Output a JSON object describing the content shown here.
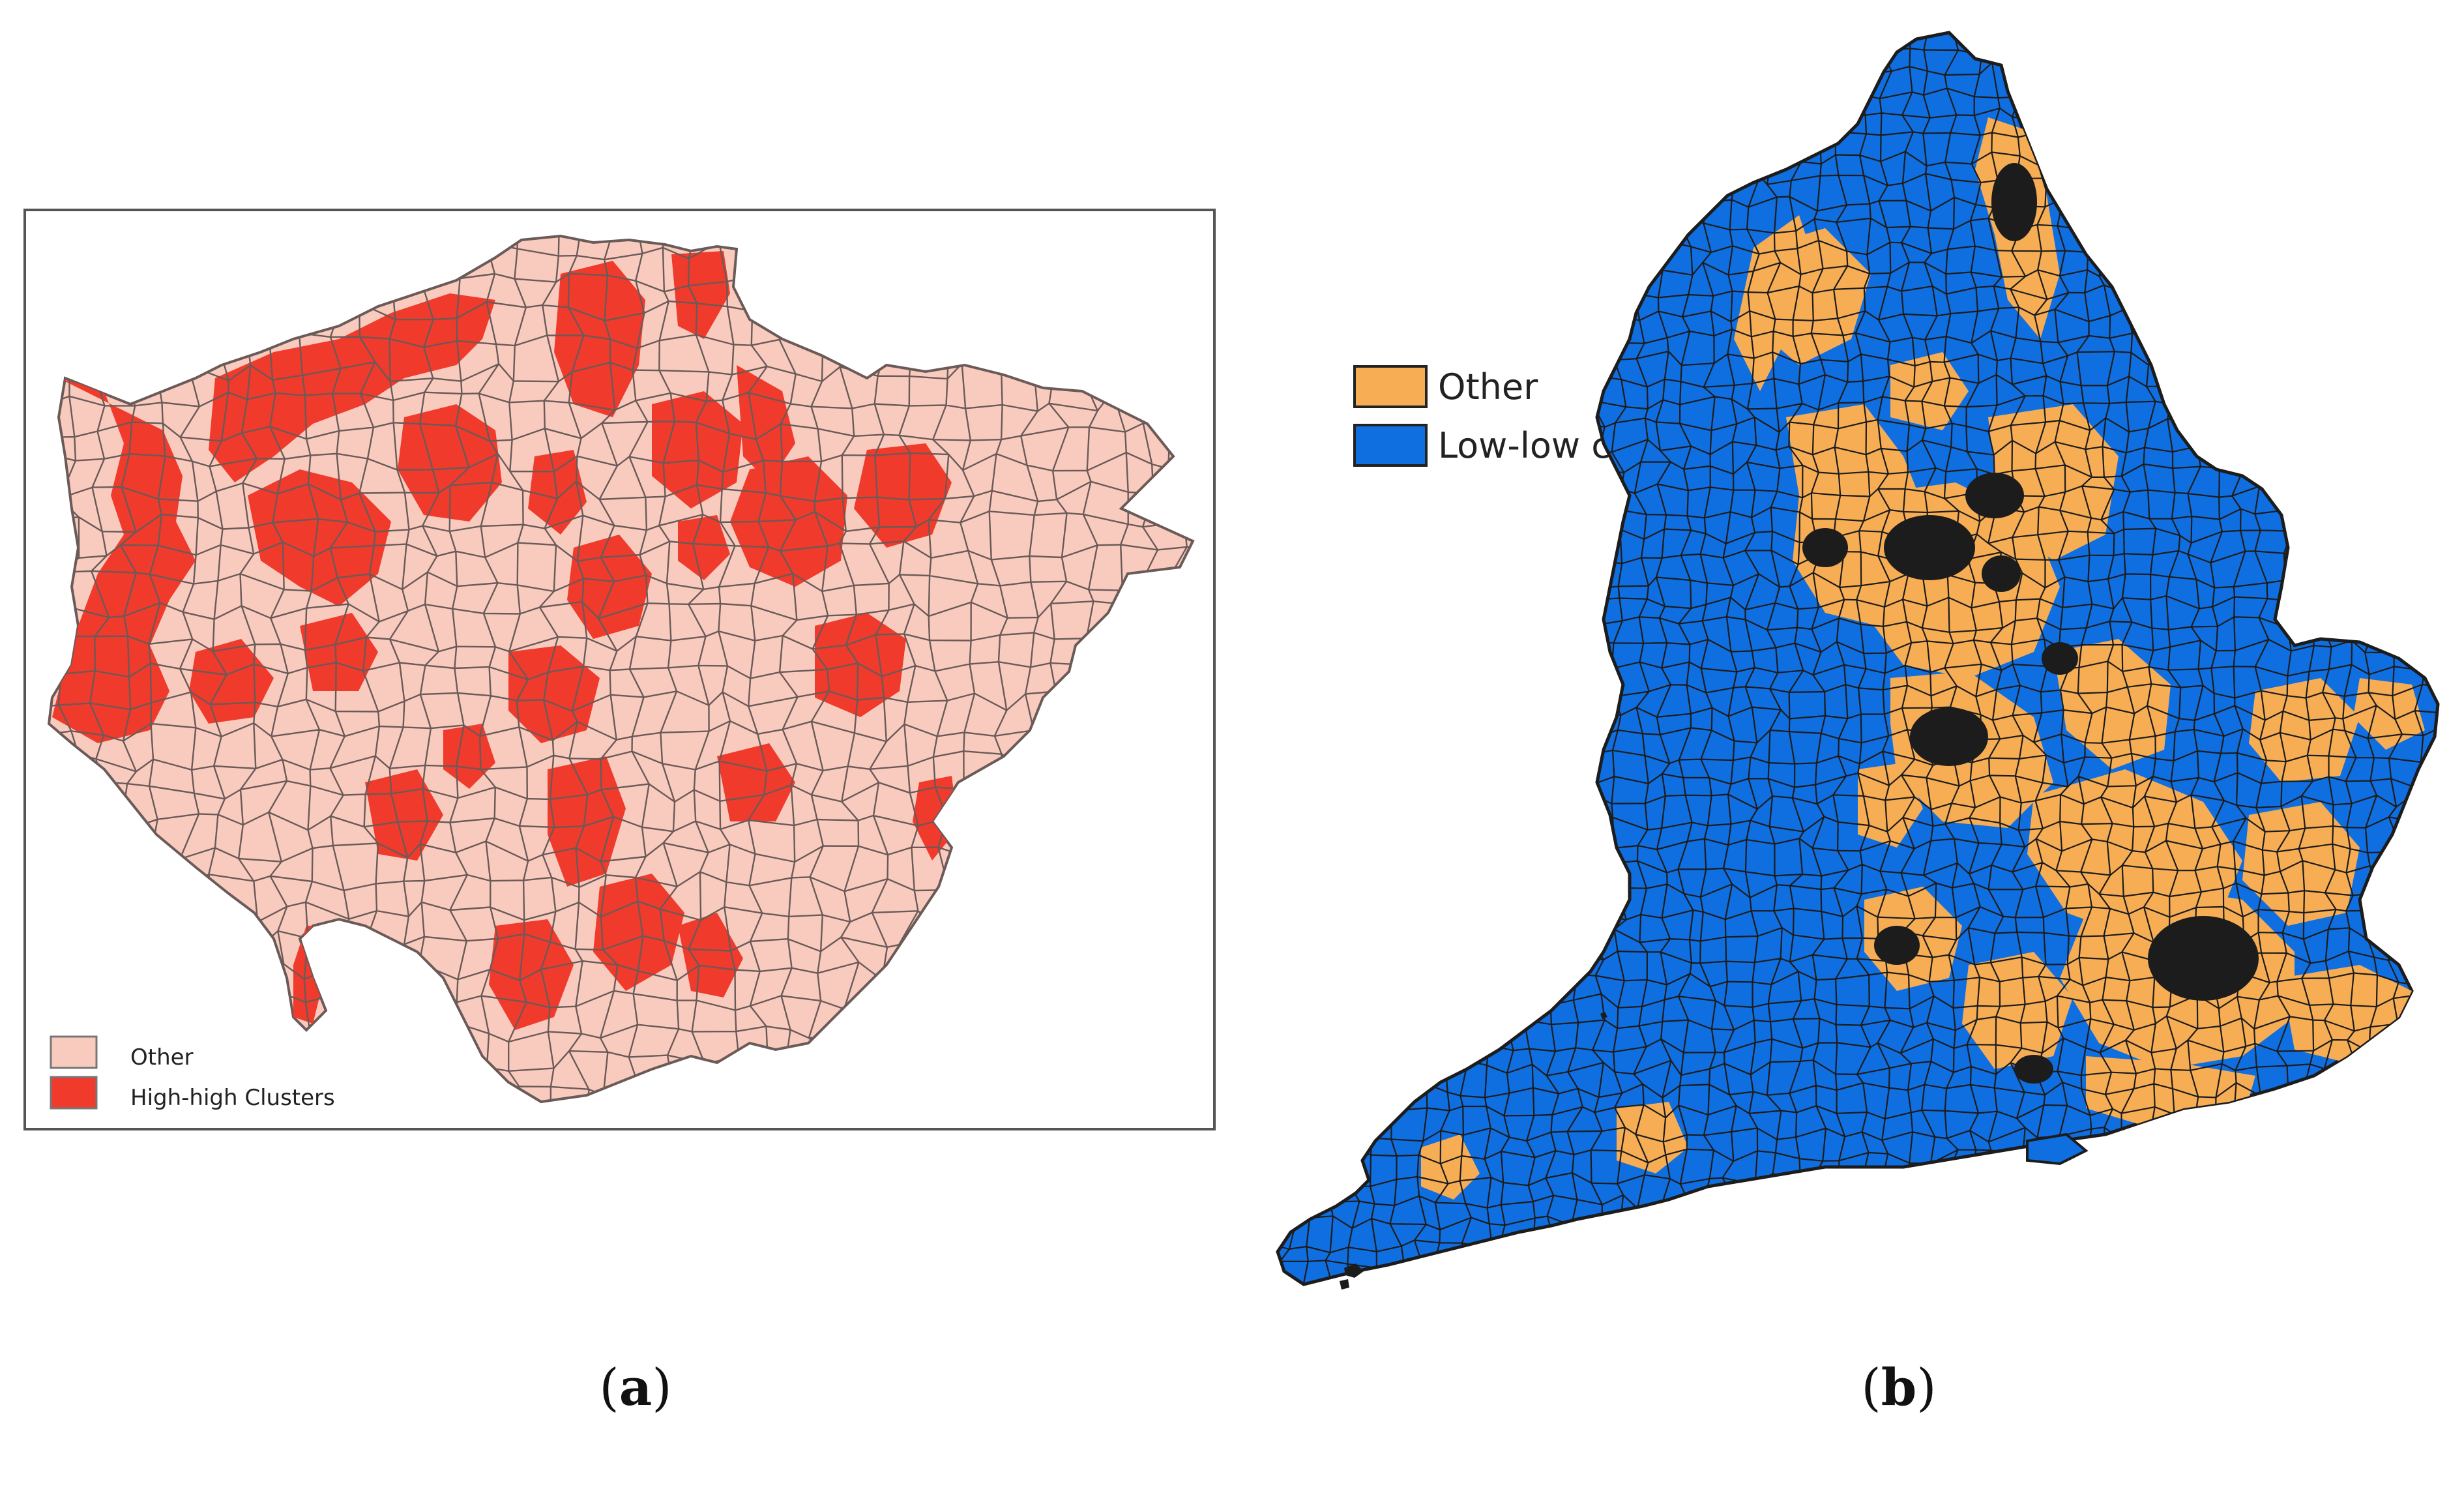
{
  "colors": {
    "london_other": "#f9cbbe",
    "london_high_high": "#f03a2c",
    "london_boundary": "#6a5a58",
    "england_other": "#f6ad54",
    "england_low_low": "#0f6ee0",
    "england_boundary": "#1c1c1c",
    "frame": "#555555"
  },
  "panel_a": {
    "caption_open": "(",
    "caption_letter": "a",
    "caption_close": ")",
    "legend": [
      {
        "label": "Other",
        "color_key": "london_other"
      },
      {
        "label": "High-high Clusters",
        "color_key": "london_high_high"
      }
    ]
  },
  "panel_b": {
    "caption_open": "(",
    "caption_letter": "b",
    "caption_close": ")",
    "legend": [
      {
        "label": "Other",
        "color_key": "england_other"
      },
      {
        "label": "Low-low cluster",
        "color_key": "england_low_low"
      }
    ]
  }
}
